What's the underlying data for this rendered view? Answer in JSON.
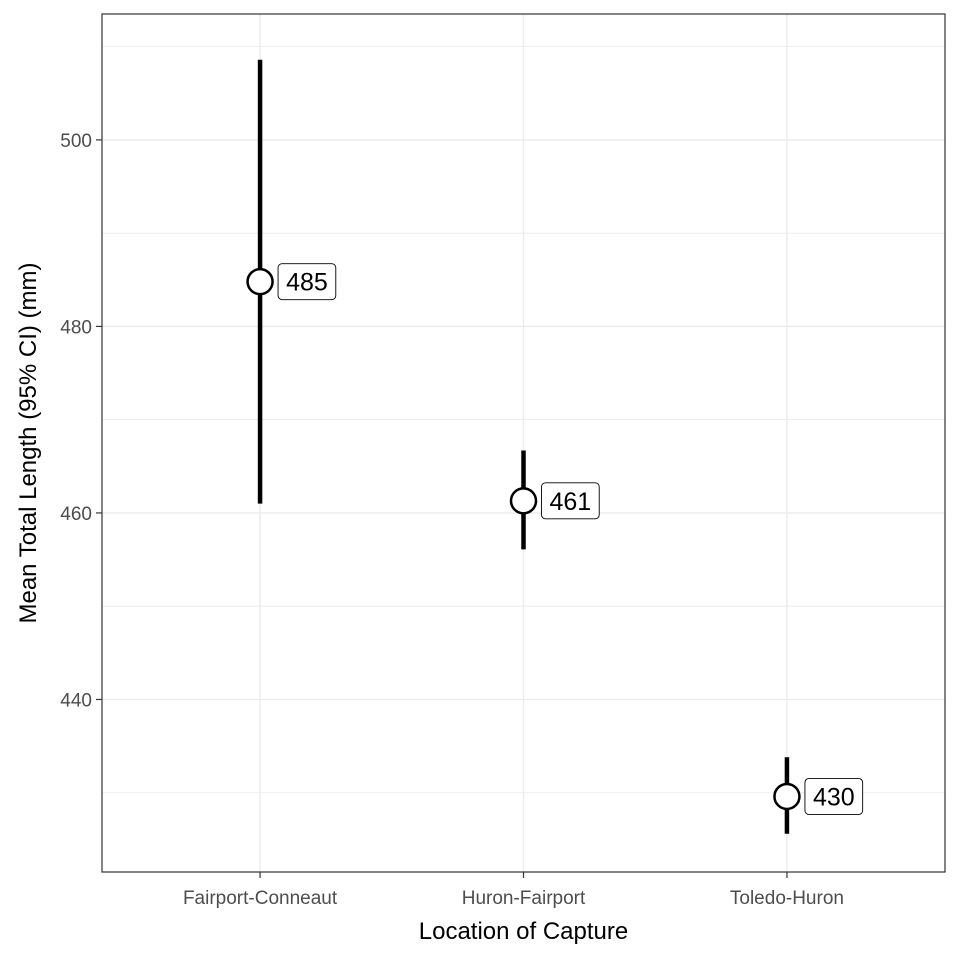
{
  "chart_data": {
    "type": "scatter",
    "title": "",
    "xlabel": "Location of Capture",
    "ylabel": "Mean Total Length (95% CI) (mm)",
    "categories": [
      "Fairport-Conneaut",
      "Huron-Fairport",
      "Toledo-Huron"
    ],
    "series": [
      {
        "values": [
          484.8,
          461.3,
          429.6
        ],
        "ci_lower": [
          461.0,
          456.1,
          425.6
        ],
        "ci_upper": [
          508.6,
          466.7,
          433.8
        ],
        "labels": [
          "485",
          "461",
          "430"
        ]
      }
    ],
    "ylim": [
      421.5,
      513.5
    ],
    "yticks": [
      440,
      460,
      480,
      500
    ],
    "yticks_labels": [
      "440",
      "460",
      "480",
      "500"
    ],
    "grid": true,
    "legend": "none",
    "colors": {
      "panel_border": "#333333",
      "grid": "#ebebeb",
      "errorbar": "#000000",
      "point_fill": "#ffffff",
      "point_stroke": "#000000"
    }
  }
}
